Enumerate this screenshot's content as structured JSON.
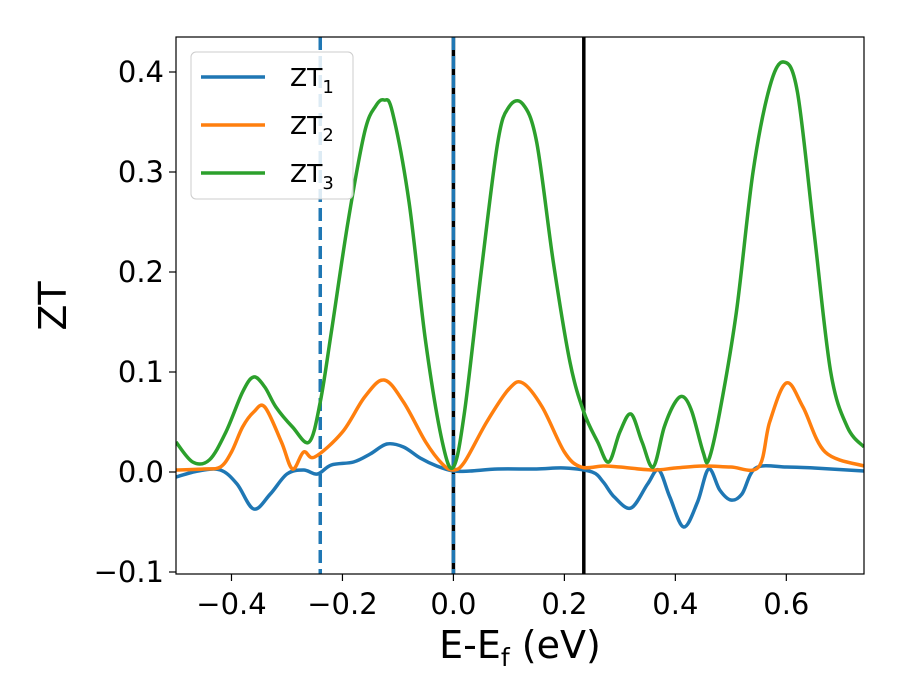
{
  "chart_data": {
    "type": "line",
    "xlabel": {
      "base": "E-E",
      "sub": "f",
      "rest": " (eV)"
    },
    "ylabel": "ZT",
    "xlim": [
      -0.5,
      0.74
    ],
    "ylim": [
      -0.102,
      0.435
    ],
    "xticks": [
      -0.4,
      -0.2,
      0.0,
      0.2,
      0.4,
      0.6
    ],
    "xtick_labels": [
      "−0.4",
      "−0.2",
      "0.0",
      "0.2",
      "0.4",
      "0.6"
    ],
    "yticks": [
      -0.1,
      0.0,
      0.1,
      0.2,
      0.3,
      0.4
    ],
    "ytick_labels": [
      "−0.1",
      "0.0",
      "0.1",
      "0.2",
      "0.3",
      "0.4"
    ],
    "legend_position": "top-left",
    "vlines": [
      {
        "x": -0.24,
        "color": "#1f77b4",
        "style": "dashed"
      },
      {
        "x": 0.0,
        "color": "#000000",
        "style": "solid-with-blue-dash"
      },
      {
        "x": 0.235,
        "color": "#000000",
        "style": "solid"
      }
    ],
    "series": [
      {
        "name": "ZT",
        "sub": "1",
        "color": "#1f77b4",
        "x": [
          -0.5,
          -0.46,
          -0.42,
          -0.39,
          -0.36,
          -0.33,
          -0.3,
          -0.27,
          -0.245,
          -0.22,
          -0.18,
          -0.15,
          -0.12,
          -0.09,
          -0.06,
          -0.03,
          0.0,
          0.03,
          0.08,
          0.15,
          0.2,
          0.25,
          0.27,
          0.29,
          0.32,
          0.35,
          0.37,
          0.39,
          0.415,
          0.44,
          0.46,
          0.48,
          0.5,
          0.52,
          0.545,
          0.6,
          0.65,
          0.74
        ],
        "y": [
          -0.005,
          0.001,
          0.002,
          -0.012,
          -0.037,
          -0.022,
          -0.002,
          0.002,
          -0.002,
          0.007,
          0.01,
          0.018,
          0.028,
          0.025,
          0.014,
          0.006,
          0.001,
          0.001,
          0.003,
          0.003,
          0.004,
          0.0,
          -0.01,
          -0.025,
          -0.036,
          -0.012,
          0.002,
          -0.025,
          -0.055,
          -0.03,
          0.003,
          -0.018,
          -0.028,
          -0.022,
          0.004,
          0.005,
          0.004,
          0.001
        ]
      },
      {
        "name": "ZT",
        "sub": "2",
        "color": "#ff7f0e",
        "x": [
          -0.5,
          -0.45,
          -0.42,
          -0.4,
          -0.38,
          -0.36,
          -0.34,
          -0.31,
          -0.29,
          -0.27,
          -0.25,
          -0.2,
          -0.16,
          -0.125,
          -0.09,
          -0.05,
          -0.02,
          0.0,
          0.02,
          0.06,
          0.1,
          0.125,
          0.16,
          0.2,
          0.23,
          0.27,
          0.3,
          0.36,
          0.4,
          0.45,
          0.5,
          0.55,
          0.57,
          0.6,
          0.63,
          0.67,
          0.74
        ],
        "y": [
          0.002,
          0.003,
          0.005,
          0.02,
          0.045,
          0.06,
          0.065,
          0.03,
          0.003,
          0.02,
          0.015,
          0.04,
          0.075,
          0.092,
          0.07,
          0.03,
          0.008,
          0.002,
          0.01,
          0.05,
          0.083,
          0.089,
          0.065,
          0.02,
          0.005,
          0.006,
          0.005,
          0.002,
          0.004,
          0.006,
          0.005,
          0.005,
          0.05,
          0.089,
          0.065,
          0.02,
          0.006
        ]
      },
      {
        "name": "ZT",
        "sub": "3",
        "color": "#2ca02c",
        "x": [
          -0.5,
          -0.47,
          -0.44,
          -0.41,
          -0.38,
          -0.36,
          -0.34,
          -0.32,
          -0.29,
          -0.26,
          -0.24,
          -0.22,
          -0.19,
          -0.16,
          -0.14,
          -0.125,
          -0.11,
          -0.08,
          -0.05,
          -0.02,
          0.0,
          0.02,
          0.05,
          0.08,
          0.1,
          0.125,
          0.15,
          0.18,
          0.21,
          0.235,
          0.26,
          0.28,
          0.3,
          0.32,
          0.34,
          0.36,
          0.38,
          0.4,
          0.415,
          0.43,
          0.45,
          0.46,
          0.48,
          0.51,
          0.54,
          0.57,
          0.595,
          0.62,
          0.65,
          0.68,
          0.71,
          0.74
        ],
        "y": [
          0.03,
          0.01,
          0.012,
          0.04,
          0.08,
          0.095,
          0.085,
          0.065,
          0.045,
          0.03,
          0.07,
          0.14,
          0.25,
          0.34,
          0.366,
          0.372,
          0.36,
          0.27,
          0.13,
          0.03,
          0.005,
          0.06,
          0.2,
          0.33,
          0.365,
          0.368,
          0.33,
          0.21,
          0.11,
          0.06,
          0.03,
          0.01,
          0.04,
          0.058,
          0.03,
          0.005,
          0.045,
          0.07,
          0.075,
          0.06,
          0.02,
          0.012,
          0.06,
          0.16,
          0.3,
          0.385,
          0.41,
          0.38,
          0.24,
          0.1,
          0.045,
          0.025
        ]
      }
    ]
  }
}
